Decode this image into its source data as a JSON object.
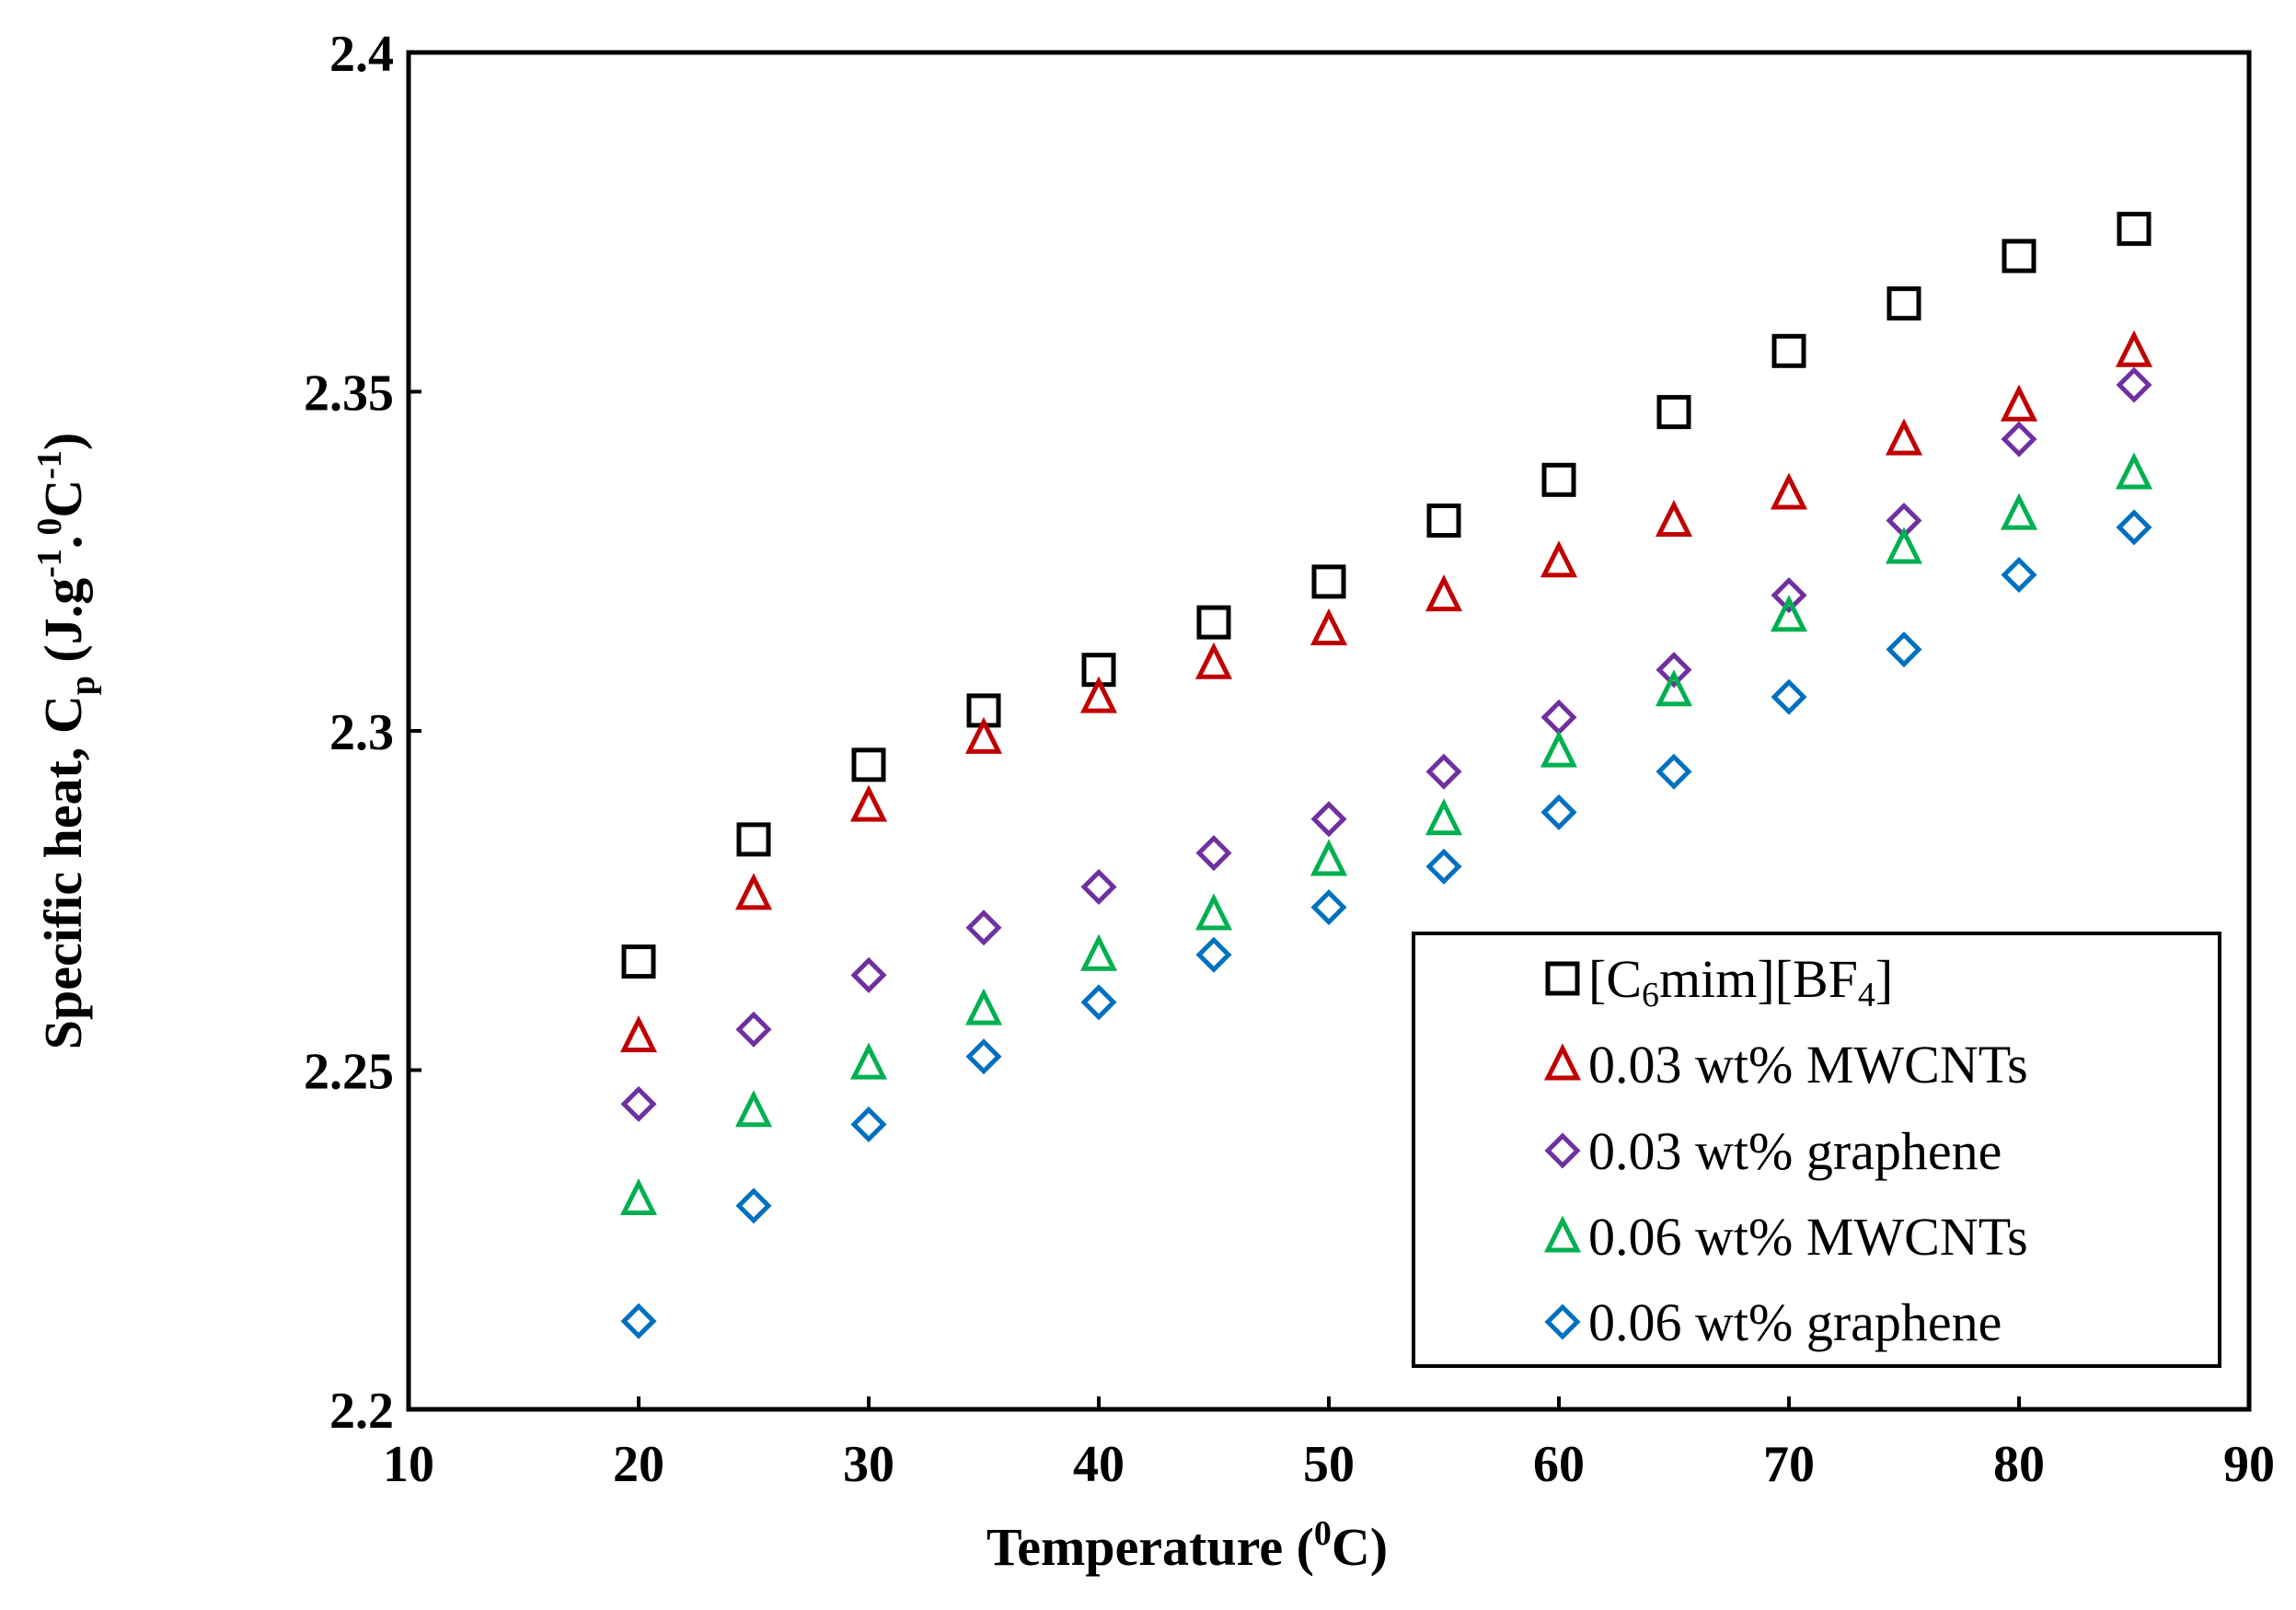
{
  "chart_data": {
    "type": "scatter",
    "xlabel": "Temperature (",
    "xlabel_sup": "0",
    "xlabel_end": "C)",
    "ylabel": {
      "prefix": "Specific heat, C",
      "sub": "p",
      "unit_open": " (J.g",
      "sup1": "-1",
      "dot": ".",
      "sup2": "0",
      "unit_c": "C",
      "sup3": "-1",
      "close": ")"
    },
    "xlim": [
      10,
      90
    ],
    "ylim": [
      2.2,
      2.4
    ],
    "xticks": [
      "10",
      "20",
      "30",
      "40",
      "50",
      "60",
      "70",
      "80",
      "90"
    ],
    "yticks": [
      "2.2",
      "2.25",
      "2.3",
      "2.35",
      "2.4"
    ],
    "legend_position": "bottom-right",
    "x": [
      20,
      25,
      30,
      35,
      40,
      45,
      50,
      55,
      60,
      65,
      70,
      75,
      80,
      85
    ],
    "series": [
      {
        "name": "[C6mim][BF4]",
        "name_parts": [
          "[C",
          "6",
          "mim][BF",
          "4",
          "]"
        ],
        "marker": "square",
        "color": "#000000",
        "values": [
          2.266,
          2.284,
          2.295,
          2.303,
          2.309,
          2.316,
          2.322,
          2.331,
          2.337,
          2.347,
          2.356,
          2.363,
          2.37,
          2.374
        ]
      },
      {
        "name": "0.03 wt% MWCNTs",
        "marker": "triangle",
        "color": "#c00000",
        "values": [
          2.255,
          2.276,
          2.289,
          2.299,
          2.305,
          2.31,
          2.315,
          2.32,
          2.325,
          2.331,
          2.335,
          2.343,
          2.348,
          2.356
        ]
      },
      {
        "name": "0.03 wt% graphene",
        "marker": "diamond",
        "color": "#7030a0",
        "values": [
          2.245,
          2.256,
          2.264,
          2.271,
          2.277,
          2.282,
          2.287,
          2.294,
          2.302,
          2.309,
          2.32,
          2.331,
          2.343,
          2.351
        ]
      },
      {
        "name": "0.06 wt% MWCNTs",
        "marker": "triangle",
        "color": "#00b050",
        "values": [
          2.231,
          2.244,
          2.251,
          2.259,
          2.267,
          2.273,
          2.281,
          2.287,
          2.297,
          2.306,
          2.317,
          2.327,
          2.332,
          2.338
        ]
      },
      {
        "name": "0.06 wt% graphene",
        "marker": "diamond",
        "color": "#0070c0",
        "values": [
          2.213,
          2.23,
          2.242,
          2.252,
          2.26,
          2.267,
          2.274,
          2.28,
          2.288,
          2.294,
          2.305,
          2.312,
          2.323,
          2.33
        ]
      }
    ]
  }
}
